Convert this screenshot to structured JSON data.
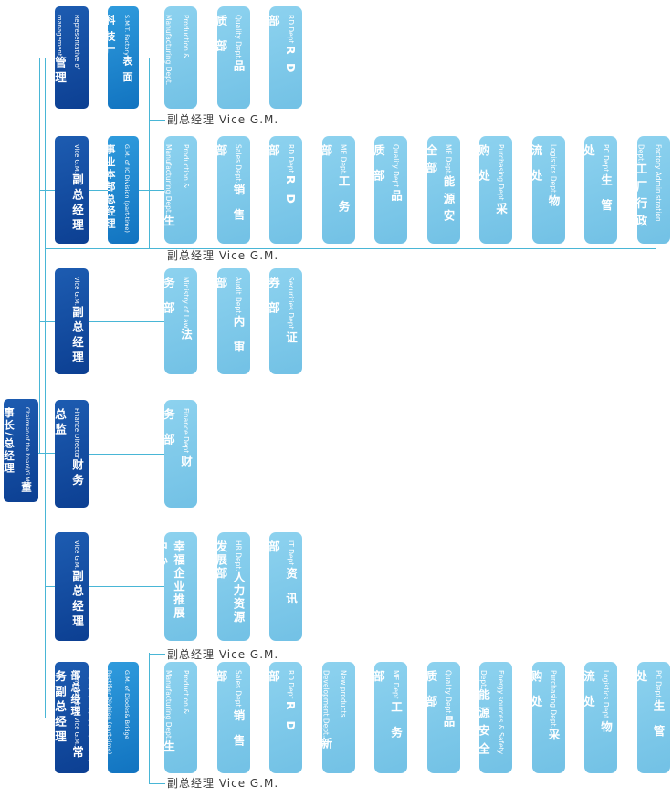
{
  "colors": {
    "manager_box": "#0c3f92",
    "division_box": "#1173c0",
    "department_box": "#7ec9ea",
    "connector_line": "#49b6d6",
    "label_text": "#3a3a3a",
    "box_text": "#ffffff"
  },
  "chairman": {
    "en": "Chairman of the board/G.M",
    "zh": "董事长/总经理"
  },
  "rows": [
    {
      "manager": {
        "en": "Representative of management",
        "zh": "管理者代表"
      },
      "division": {
        "en": "S.M.T. Factory",
        "zh": "表面科技厂"
      },
      "label_below": "副总经理 Vice G.M.",
      "departments": [
        {
          "en": "Production & Manufacturing Dept.",
          "zh": "生产制造部"
        },
        {
          "en": "Quality Dept.",
          "zh": "品质部"
        },
        {
          "en": "RD Dept.",
          "zh": "RD 部"
        }
      ]
    },
    {
      "manager": {
        "en": "Vice G.M.",
        "zh": "副总经理"
      },
      "division": {
        "en": "G.M. of IC Division (part-time)",
        "zh": "事业本部总经理"
      },
      "label_below": "副总经理 Vice G.M.",
      "departments": [
        {
          "en": "Production & Manufacturing Dept.",
          "zh": "生产制造部"
        },
        {
          "en": "Sales Dept.",
          "zh": "销售部"
        },
        {
          "en": "RD Dept.",
          "zh": "RD 部"
        },
        {
          "en": "ME Dept.",
          "zh": "工务部"
        },
        {
          "en": "Quality Dept.",
          "zh": "品质部"
        },
        {
          "en": "ME Dept.",
          "zh": "能源安全部"
        },
        {
          "en": "Purchasing Dept.",
          "zh": "采购处"
        },
        {
          "en": "Logistics Dept.",
          "zh": "物流处"
        },
        {
          "en": "PC Dept.",
          "zh": "生管处"
        },
        {
          "en": "Factory Administration Dept.",
          "zh": "工厂行政部"
        }
      ]
    },
    {
      "manager": {
        "en": "Vice G.M.",
        "zh": "副总经理"
      },
      "departments": [
        {
          "en": "Ministry of Law",
          "zh": "法务部"
        },
        {
          "en": "Audit Dept.",
          "zh": "内审部"
        },
        {
          "en": "Securities Dept.",
          "zh": "证券部"
        }
      ]
    },
    {
      "manager": {
        "en": "Finance Director",
        "zh": "财务总监"
      },
      "departments": [
        {
          "en": "Finance Dept.",
          "zh": "财务部"
        }
      ]
    },
    {
      "manager": {
        "en": "Vice G.M.",
        "zh": "副总经理"
      },
      "departments": [
        {
          "en": "",
          "zh": "幸福企业推展中心"
        },
        {
          "en": "HR Dept.",
          "zh": "人力资源发展部"
        },
        {
          "en": "IT Dept.",
          "zh": "资讯部"
        }
      ]
    },
    {
      "manager": {
        "en": "Administrative vice G.M.",
        "zh": "常务副总经理"
      },
      "division": {
        "en": "G.M. of Diodes& Bridge Rectifier Division (part-time)",
        "zh": "二极管桥堆事业本部总经理"
      },
      "label_above": "副总经理 Vice G.M.",
      "label_below": "副总经理 Vice G.M.",
      "departments": [
        {
          "en": "Production & Manufacturing Dept.",
          "zh": "生产制造部"
        },
        {
          "en": "Sales Dept.",
          "zh": "销售部"
        },
        {
          "en": "RD Dept.",
          "zh": "RD 部"
        },
        {
          "en": "New products Development Dept.",
          "zh": "新品研发部"
        },
        {
          "en": "ME Dept.",
          "zh": "工务部"
        },
        {
          "en": "Quality Dept.",
          "zh": "品质部"
        },
        {
          "en": "Energy sources & Safety Dept.",
          "zh": "能源安全部"
        },
        {
          "en": "Purchasing Dept.",
          "zh": "采购处"
        },
        {
          "en": "Logistics Dept.",
          "zh": "物流处"
        },
        {
          "en": "PC Dept.",
          "zh": "生管处"
        }
      ]
    }
  ]
}
